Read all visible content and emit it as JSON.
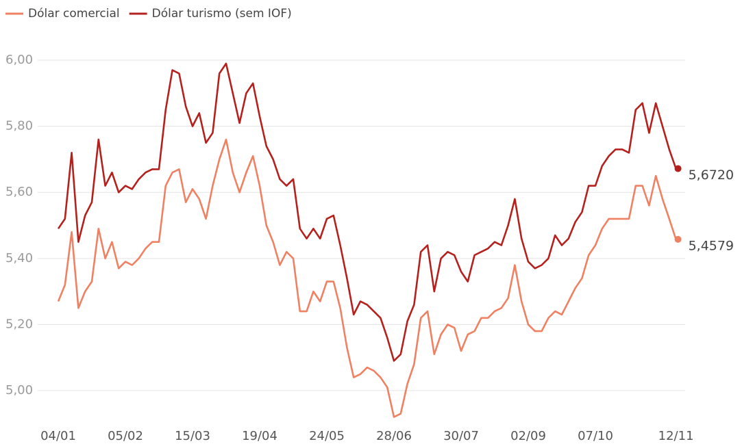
{
  "chart_data": {
    "type": "line",
    "categories": [
      "04/01",
      null,
      null,
      null,
      null,
      null,
      null,
      null,
      null,
      null,
      "05/02",
      null,
      null,
      null,
      null,
      null,
      null,
      null,
      null,
      null,
      "15/03",
      null,
      null,
      null,
      null,
      null,
      null,
      null,
      null,
      null,
      "19/04",
      null,
      null,
      null,
      null,
      null,
      null,
      null,
      null,
      null,
      "24/05",
      null,
      null,
      null,
      null,
      null,
      null,
      null,
      null,
      null,
      "28/06",
      null,
      null,
      null,
      null,
      null,
      null,
      null,
      null,
      null,
      "30/07",
      null,
      null,
      null,
      null,
      null,
      null,
      null,
      null,
      null,
      "02/09",
      null,
      null,
      null,
      null,
      null,
      null,
      null,
      null,
      null,
      "07/10",
      null,
      null,
      null,
      null,
      null,
      null,
      null,
      null,
      null,
      null,
      null,
      "12/11"
    ],
    "series": [
      {
        "name": "Dólar comercial",
        "color": "#f08062",
        "values": [
          5.27,
          5.32,
          5.48,
          5.25,
          5.3,
          5.33,
          5.49,
          5.4,
          5.45,
          5.37,
          5.39,
          5.38,
          5.4,
          5.43,
          5.45,
          5.45,
          5.62,
          5.66,
          5.67,
          5.57,
          5.61,
          5.58,
          5.52,
          5.62,
          5.7,
          5.76,
          5.66,
          5.6,
          5.66,
          5.71,
          5.62,
          5.5,
          5.45,
          5.38,
          5.42,
          5.4,
          5.24,
          5.24,
          5.3,
          5.27,
          5.33,
          5.33,
          5.25,
          5.13,
          5.04,
          5.05,
          5.07,
          5.06,
          5.04,
          5.01,
          4.92,
          4.93,
          5.02,
          5.08,
          5.22,
          5.24,
          5.11,
          5.17,
          5.2,
          5.19,
          5.12,
          5.17,
          5.18,
          5.22,
          5.22,
          5.24,
          5.25,
          5.28,
          5.38,
          5.27,
          5.2,
          5.18,
          5.18,
          5.22,
          5.24,
          5.23,
          5.27,
          5.31,
          5.34,
          5.41,
          5.44,
          5.49,
          5.52,
          5.52,
          5.52,
          5.52,
          5.62,
          5.62,
          5.56,
          5.65,
          5.58,
          5.52,
          5.4579
        ],
        "value_labels": [
          null,
          null,
          null,
          null,
          null,
          null,
          null,
          null,
          null,
          null,
          null,
          null,
          null,
          null,
          null,
          null,
          null,
          null,
          null,
          null,
          null,
          null,
          null,
          null,
          null,
          null,
          null,
          null,
          null,
          null,
          null,
          null,
          null,
          null,
          null,
          null,
          null,
          null,
          null,
          null,
          null,
          null,
          null,
          null,
          null,
          null,
          null,
          null,
          null,
          null,
          null,
          null,
          null,
          null,
          null,
          null,
          null,
          null,
          null,
          null,
          null,
          null,
          null,
          null,
          null,
          null,
          null,
          null,
          null,
          null,
          null,
          null,
          null,
          null,
          null,
          null,
          null,
          null,
          null,
          null,
          null,
          null,
          null,
          null,
          null,
          null,
          null,
          null,
          null,
          null,
          null,
          null,
          "5,4579"
        ]
      },
      {
        "name": "Dólar turismo (sem IOF)",
        "color": "#b5201c",
        "values": [
          5.49,
          5.52,
          5.72,
          5.45,
          5.53,
          5.57,
          5.76,
          5.62,
          5.66,
          5.6,
          5.62,
          5.61,
          5.64,
          5.66,
          5.67,
          5.67,
          5.85,
          5.97,
          5.96,
          5.86,
          5.8,
          5.84,
          5.75,
          5.78,
          5.96,
          5.99,
          5.9,
          5.81,
          5.9,
          5.93,
          5.83,
          5.74,
          5.7,
          5.64,
          5.62,
          5.64,
          5.49,
          5.46,
          5.49,
          5.46,
          5.52,
          5.53,
          5.44,
          5.34,
          5.23,
          5.27,
          5.26,
          5.24,
          5.22,
          5.16,
          5.09,
          5.11,
          5.21,
          5.26,
          5.42,
          5.44,
          5.3,
          5.4,
          5.42,
          5.41,
          5.36,
          5.33,
          5.41,
          5.42,
          5.43,
          5.45,
          5.44,
          5.5,
          5.58,
          5.46,
          5.39,
          5.37,
          5.38,
          5.4,
          5.47,
          5.44,
          5.46,
          5.51,
          5.54,
          5.62,
          5.62,
          5.68,
          5.71,
          5.73,
          5.73,
          5.72,
          5.85,
          5.87,
          5.78,
          5.87,
          5.8,
          5.73,
          5.672
        ],
        "value_labels": [
          null,
          null,
          null,
          null,
          null,
          null,
          null,
          null,
          null,
          null,
          null,
          null,
          null,
          null,
          null,
          null,
          null,
          null,
          null,
          null,
          null,
          null,
          null,
          null,
          null,
          null,
          null,
          null,
          null,
          null,
          null,
          null,
          null,
          null,
          null,
          null,
          null,
          null,
          null,
          null,
          null,
          null,
          null,
          null,
          null,
          null,
          null,
          null,
          null,
          null,
          null,
          null,
          null,
          null,
          null,
          null,
          null,
          null,
          null,
          null,
          null,
          null,
          null,
          null,
          null,
          null,
          null,
          null,
          null,
          null,
          null,
          null,
          null,
          null,
          null,
          null,
          null,
          null,
          null,
          null,
          null,
          null,
          null,
          null,
          null,
          null,
          null,
          null,
          null,
          null,
          null,
          null,
          "5,6720"
        ]
      }
    ],
    "ylim": [
      4.9,
      6.08
    ],
    "yticks": [
      {
        "value": 5.0,
        "label": "5,00"
      },
      {
        "value": 5.2,
        "label": "5,20"
      },
      {
        "value": 5.4,
        "label": "5,40"
      },
      {
        "value": 5.6,
        "label": "5,60"
      },
      {
        "value": 5.8,
        "label": "5,80"
      },
      {
        "value": 6.0,
        "label": "6,00"
      }
    ],
    "grid": true
  }
}
